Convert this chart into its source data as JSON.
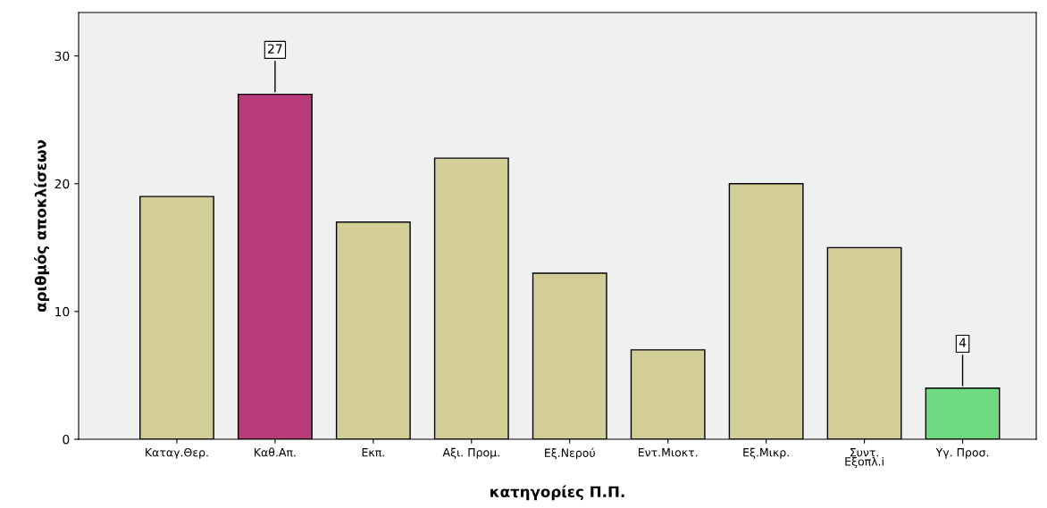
{
  "chart_data": {
    "type": "bar",
    "xlabel": "κατηγορίες Π.Π.",
    "ylabel": "αριθμός αποκλίσεων",
    "categories": [
      "Καταγ.Θερ.",
      "Καθ.Απ.",
      "Εκπ.",
      "Αξι. Προμ.",
      "Εξ.Νερού",
      "Εντ.Μιοκτ.",
      "Εξ.Μικρ.",
      "Συντ.\nΕξοπλ.i",
      "Υγ. Προσ."
    ],
    "values": [
      19,
      27,
      17,
      22,
      13,
      7,
      20,
      15,
      4
    ],
    "colors": [
      "#d3ce97",
      "#b93b7a",
      "#d3ce97",
      "#d3ce97",
      "#d3ce97",
      "#d3ce97",
      "#d3ce97",
      "#d3ce97",
      "#6fd97f"
    ],
    "value_labels": [
      null,
      "27",
      null,
      null,
      null,
      null,
      null,
      null,
      "4"
    ],
    "ylim": [
      0,
      33.4
    ],
    "yticks": [
      0,
      10,
      20,
      30
    ],
    "grid": false,
    "legend": false
  }
}
